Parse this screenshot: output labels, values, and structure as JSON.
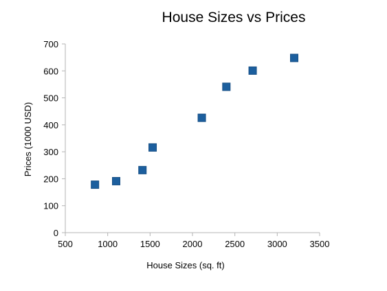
{
  "chart_data": {
    "type": "scatter",
    "title": "House Sizes vs Prices",
    "xlabel": "House Sizes (sq. ft)",
    "ylabel": "Prices (1000 USD)",
    "xlim": [
      500,
      3500
    ],
    "ylim": [
      0,
      700
    ],
    "x_ticks": [
      500,
      1000,
      1500,
      2000,
      2500,
      3000,
      3500
    ],
    "y_ticks": [
      0,
      100,
      200,
      300,
      400,
      500,
      600,
      700
    ],
    "grid": false,
    "legend": "none",
    "marker": "square",
    "colors": {
      "marker_fill": "#1c5f9e",
      "marker_edge": "#174f85",
      "axis": "#b3b3b3"
    },
    "series": [
      {
        "points": [
          {
            "x": 850,
            "y": 178
          },
          {
            "x": 1100,
            "y": 191
          },
          {
            "x": 1410,
            "y": 232
          },
          {
            "x": 1530,
            "y": 316
          },
          {
            "x": 2110,
            "y": 426
          },
          {
            "x": 2400,
            "y": 541
          },
          {
            "x": 2710,
            "y": 601
          },
          {
            "x": 3200,
            "y": 648
          }
        ]
      }
    ]
  }
}
